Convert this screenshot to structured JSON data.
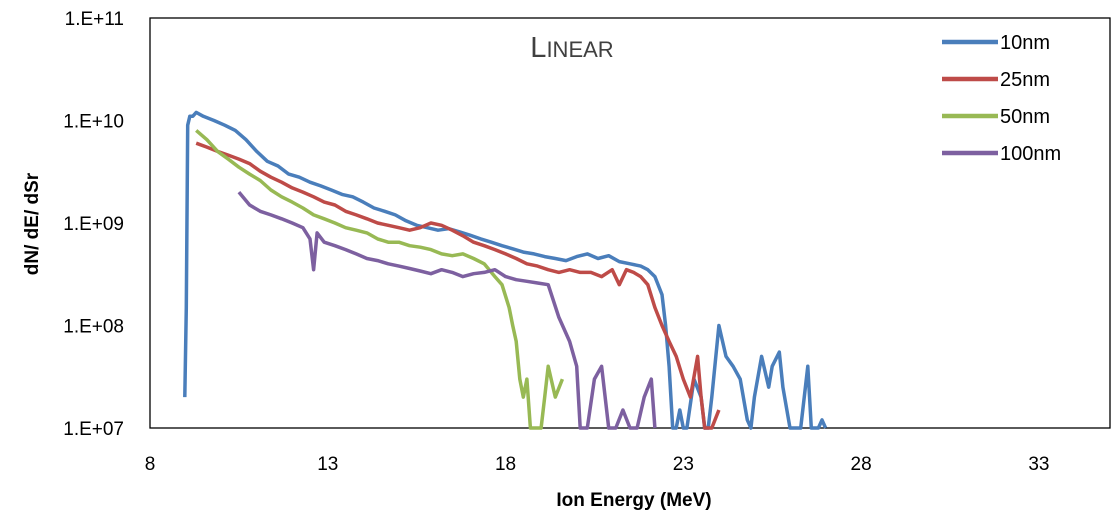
{
  "chart_data": {
    "type": "line",
    "title": "Linear",
    "xlabel": "Ion Energy (MeV)",
    "ylabel": "dN/ dE/ dSr",
    "xlim": [
      8,
      35
    ],
    "xticks": [
      8,
      13,
      18,
      23,
      28,
      33
    ],
    "ylim": [
      10000000,
      100000000000
    ],
    "yscale": "log",
    "yticks": [
      10000000,
      100000000,
      1000000000,
      10000000000,
      100000000000
    ],
    "ytick_labels": [
      "1.E+07",
      "1.E+08",
      "1.E+09",
      "1.E+10",
      "1.E+11"
    ],
    "grid": false,
    "legend_position": "top-right",
    "series": [
      {
        "name": "10nm",
        "color": "#4a7ebb",
        "x": [
          8.98,
          9.02,
          9.06,
          9.12,
          9.2,
          9.3,
          9.5,
          9.8,
          10.1,
          10.4,
          10.7,
          11.0,
          11.3,
          11.6,
          11.9,
          12.2,
          12.5,
          12.8,
          13.1,
          13.4,
          13.7,
          14.0,
          14.3,
          14.6,
          14.9,
          15.2,
          15.5,
          15.8,
          16.1,
          16.4,
          16.7,
          17.0,
          17.3,
          17.6,
          17.9,
          18.2,
          18.5,
          18.8,
          19.1,
          19.4,
          19.7,
          20.0,
          20.3,
          20.6,
          20.9,
          21.2,
          21.5,
          21.8,
          22.0,
          22.2,
          22.4,
          22.5,
          22.6,
          22.7,
          22.8,
          22.9,
          23.0,
          23.1,
          23.3,
          23.5,
          23.6,
          23.7,
          23.8,
          24.0,
          24.2,
          24.4,
          24.6,
          24.8,
          24.9,
          25.0,
          25.2,
          25.4,
          25.5,
          25.7,
          25.8,
          26.0,
          26.2,
          26.3,
          26.5,
          26.6,
          26.8,
          26.9,
          27.0
        ],
        "y": [
          20000000,
          150000000,
          9000000000,
          11000000000,
          11000000000,
          12000000000,
          11000000000,
          10000000000,
          9000000000,
          8000000000,
          6500000000,
          5000000000,
          4000000000,
          3600000000,
          3000000000,
          2800000000,
          2500000000,
          2300000000,
          2100000000,
          1900000000,
          1800000000,
          1600000000,
          1400000000,
          1300000000,
          1200000000,
          1050000000,
          950000000,
          900000000,
          850000000,
          880000000,
          820000000,
          760000000,
          700000000,
          650000000,
          600000000,
          560000000,
          520000000,
          500000000,
          470000000,
          450000000,
          430000000,
          470000000,
          500000000,
          450000000,
          480000000,
          420000000,
          400000000,
          380000000,
          350000000,
          300000000,
          200000000,
          100000000,
          40000000,
          10000000,
          10000000,
          15000000,
          10000000,
          10000000,
          30000000,
          20000000,
          10000000,
          10000000,
          20000000,
          100000000,
          50000000,
          40000000,
          30000000,
          12000000,
          10000000,
          20000000,
          50000000,
          25000000,
          40000000,
          55000000,
          25000000,
          10000000,
          10000000,
          10000000,
          40000000,
          10000000,
          10000000,
          12000000,
          10000000
        ]
      },
      {
        "name": "25nm",
        "color": "#be4b48",
        "x": [
          9.3,
          9.6,
          9.9,
          10.2,
          10.5,
          10.8,
          11.1,
          11.4,
          11.7,
          12.0,
          12.3,
          12.6,
          12.9,
          13.2,
          13.5,
          13.8,
          14.1,
          14.4,
          14.7,
          15.0,
          15.3,
          15.6,
          15.9,
          16.2,
          16.5,
          16.8,
          17.1,
          17.4,
          17.7,
          18.0,
          18.3,
          18.6,
          18.9,
          19.2,
          19.5,
          19.8,
          20.1,
          20.4,
          20.7,
          21.0,
          21.2,
          21.4,
          21.6,
          21.8,
          22.0,
          22.2,
          22.4,
          22.6,
          22.8,
          23.0,
          23.2,
          23.4,
          23.5,
          23.6,
          23.8,
          24.0
        ],
        "y": [
          6000000000,
          5500000000,
          5000000000,
          4600000000,
          4200000000,
          3800000000,
          3200000000,
          2800000000,
          2500000000,
          2200000000,
          2000000000,
          1800000000,
          1600000000,
          1500000000,
          1300000000,
          1200000000,
          1100000000,
          1000000000,
          950000000,
          900000000,
          850000000,
          900000000,
          1000000000,
          950000000,
          850000000,
          750000000,
          650000000,
          600000000,
          550000000,
          500000000,
          450000000,
          400000000,
          380000000,
          350000000,
          330000000,
          350000000,
          330000000,
          330000000,
          300000000,
          350000000,
          250000000,
          350000000,
          330000000,
          300000000,
          250000000,
          150000000,
          100000000,
          70000000,
          50000000,
          30000000,
          20000000,
          50000000,
          20000000,
          10000000,
          10000000,
          15000000
        ]
      },
      {
        "name": "50nm",
        "color": "#98b954",
        "x": [
          9.3,
          9.6,
          9.9,
          10.2,
          10.5,
          10.8,
          11.1,
          11.4,
          11.7,
          12.0,
          12.3,
          12.6,
          12.9,
          13.2,
          13.5,
          13.8,
          14.1,
          14.4,
          14.7,
          15.0,
          15.3,
          15.6,
          15.9,
          16.2,
          16.5,
          16.8,
          17.1,
          17.4,
          17.7,
          17.9,
          18.1,
          18.2,
          18.3,
          18.4,
          18.5,
          18.6,
          18.7,
          18.8,
          18.9,
          19.0,
          19.1,
          19.2,
          19.4,
          19.6
        ],
        "y": [
          8000000000,
          6500000000,
          5000000000,
          4200000000,
          3500000000,
          3000000000,
          2600000000,
          2100000000,
          1800000000,
          1600000000,
          1400000000,
          1200000000,
          1100000000,
          1000000000,
          900000000,
          850000000,
          800000000,
          700000000,
          650000000,
          650000000,
          600000000,
          580000000,
          550000000,
          500000000,
          480000000,
          500000000,
          450000000,
          400000000,
          300000000,
          250000000,
          150000000,
          100000000,
          70000000,
          30000000,
          20000000,
          30000000,
          10000000,
          10000000,
          10000000,
          10000000,
          20000000,
          40000000,
          20000000,
          30000000
        ]
      },
      {
        "name": "100nm",
        "color": "#7d60a0",
        "x": [
          10.5,
          10.8,
          11.1,
          11.4,
          11.7,
          12.0,
          12.3,
          12.5,
          12.6,
          12.7,
          12.9,
          13.2,
          13.5,
          13.8,
          14.1,
          14.4,
          14.7,
          15.0,
          15.3,
          15.6,
          15.9,
          16.2,
          16.5,
          16.8,
          17.1,
          17.4,
          17.7,
          18.0,
          18.3,
          18.6,
          18.9,
          19.2,
          19.5,
          19.8,
          20.0,
          20.1,
          20.3,
          20.5,
          20.7,
          20.9,
          21.1,
          21.3,
          21.5,
          21.7,
          21.9,
          22.1,
          22.2
        ],
        "y": [
          2000000000,
          1500000000,
          1300000000,
          1200000000,
          1100000000,
          1000000000,
          900000000,
          700000000,
          350000000,
          800000000,
          650000000,
          600000000,
          550000000,
          500000000,
          450000000,
          430000000,
          400000000,
          380000000,
          360000000,
          340000000,
          320000000,
          350000000,
          330000000,
          300000000,
          320000000,
          330000000,
          350000000,
          300000000,
          280000000,
          270000000,
          260000000,
          250000000,
          120000000,
          70000000,
          40000000,
          10000000,
          10000000,
          30000000,
          40000000,
          10000000,
          10000000,
          15000000,
          10000000,
          10000000,
          20000000,
          30000000,
          10000000
        ]
      }
    ]
  }
}
